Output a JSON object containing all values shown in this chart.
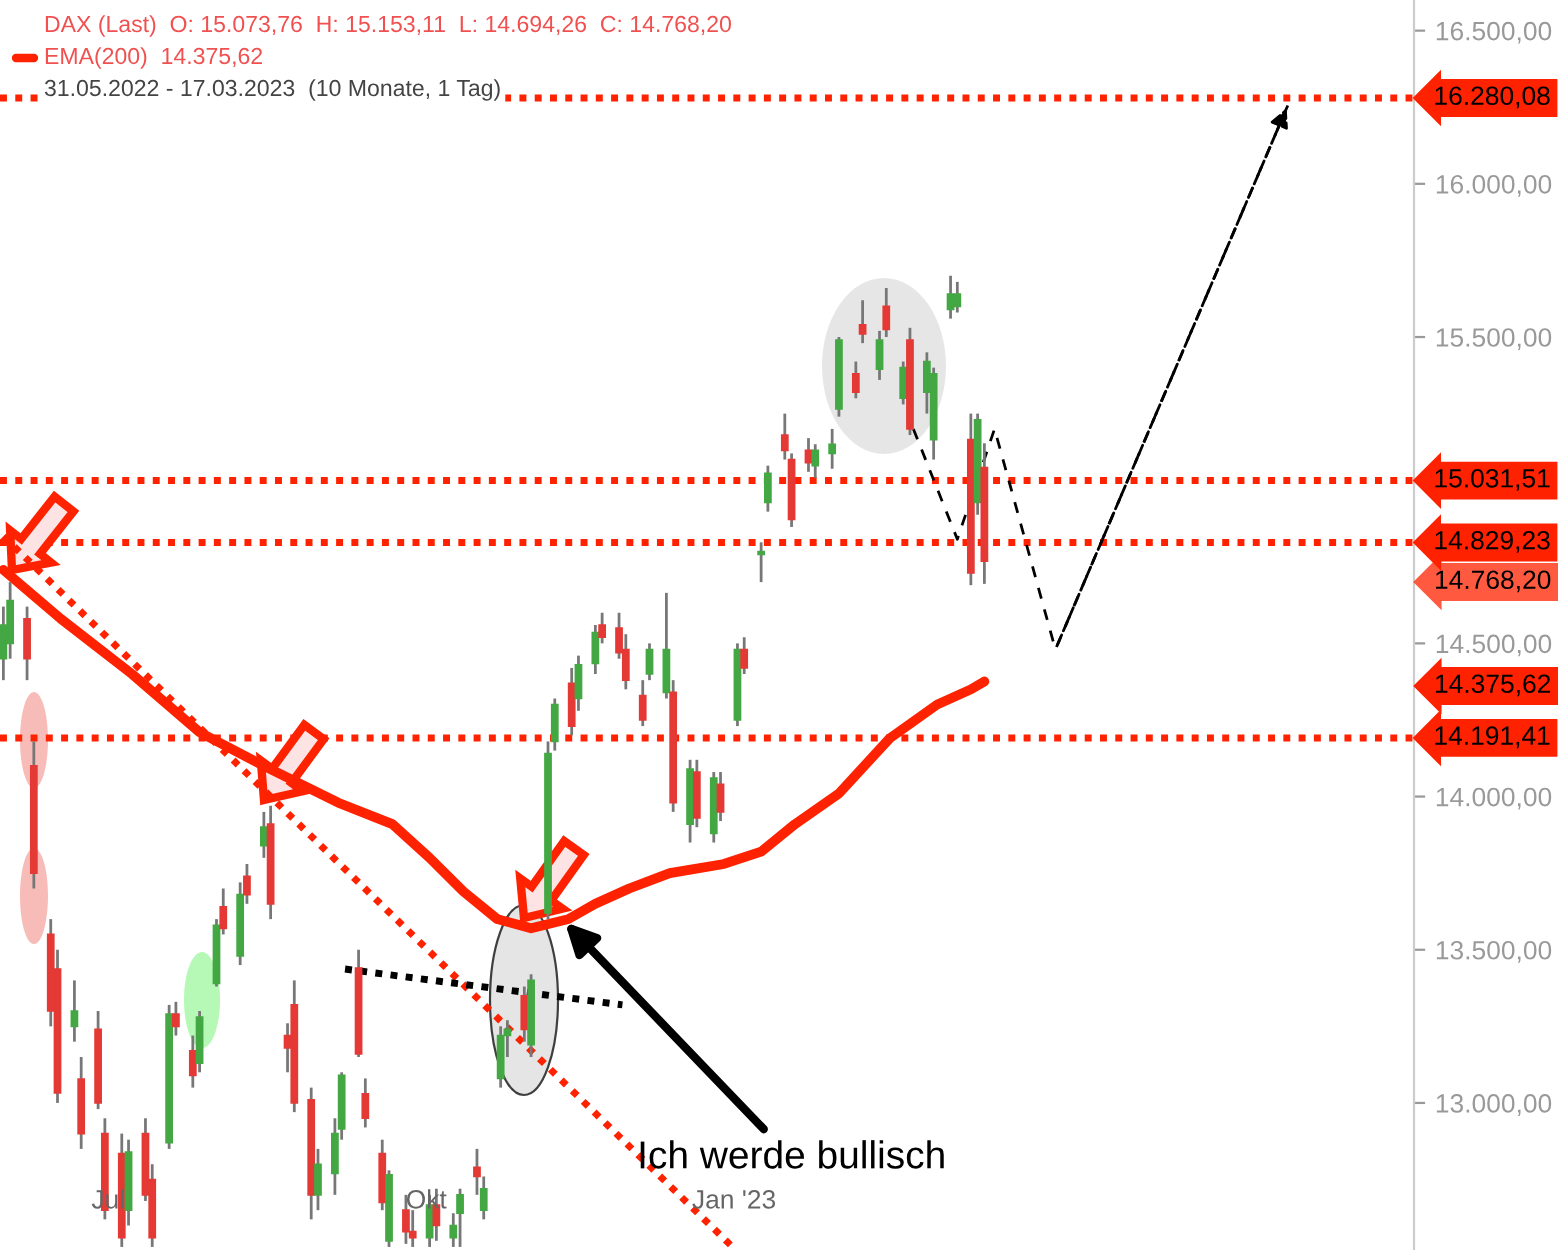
{
  "chart_data": {
    "type": "candlestick",
    "x": [
      "2022-05-31",
      "2022-06-02",
      "2022-06-07",
      "2022-06-09",
      "2022-06-14",
      "2022-06-16",
      "2022-06-21",
      "2022-06-23",
      "2022-06-28",
      "2022-06-30",
      "2022-07-05",
      "2022-07-07",
      "2022-07-12",
      "2022-07-14",
      "2022-07-19",
      "2022-07-21",
      "2022-07-26",
      "2022-07-28",
      "2022-08-02",
      "2022-08-04",
      "2022-08-09",
      "2022-08-11",
      "2022-08-16",
      "2022-08-18",
      "2022-08-23",
      "2022-08-25",
      "2022-08-30",
      "2022-09-01",
      "2022-09-06",
      "2022-09-08",
      "2022-09-13",
      "2022-09-15",
      "2022-09-20",
      "2022-09-22",
      "2022-09-27",
      "2022-09-29",
      "2022-10-04",
      "2022-10-06",
      "2022-10-11",
      "2022-10-13",
      "2022-10-18",
      "2022-10-20",
      "2022-10-25",
      "2022-10-27",
      "2022-11-01",
      "2022-11-03",
      "2022-11-08",
      "2022-11-10",
      "2022-11-15",
      "2022-11-17",
      "2022-11-22",
      "2022-11-24",
      "2022-11-29",
      "2022-12-01",
      "2022-12-06",
      "2022-12-08",
      "2022-12-13",
      "2022-12-15",
      "2022-12-20",
      "2022-12-22",
      "2022-12-27",
      "2022-12-29",
      "2023-01-03",
      "2023-01-05",
      "2023-01-10",
      "2023-01-12",
      "2023-01-17",
      "2023-01-19",
      "2023-01-24",
      "2023-01-26",
      "2023-01-31",
      "2023-02-02",
      "2023-02-07",
      "2023-02-09",
      "2023-02-14",
      "2023-02-16",
      "2023-02-21",
      "2023-02-23",
      "2023-02-28",
      "2023-03-02",
      "2023-03-07",
      "2023-03-09",
      "2023-03-13",
      "2023-03-15",
      "2023-03-17"
    ],
    "ohlc": [
      [
        14450,
        14620,
        14380,
        14560
      ],
      [
        14500,
        14700,
        14450,
        14640
      ],
      [
        14580,
        14620,
        14380,
        14450
      ],
      [
        14100,
        14180,
        13700,
        13750
      ],
      [
        13550,
        13600,
        13250,
        13300
      ],
      [
        13437,
        13500,
        13000,
        13033
      ],
      [
        13250,
        13400,
        13200,
        13300
      ],
      [
        13078,
        13150,
        12850,
        12900
      ],
      [
        13240,
        13300,
        12980,
        13000
      ],
      [
        12900,
        12950,
        12620,
        12650
      ],
      [
        12835,
        12900,
        12530,
        12560
      ],
      [
        12650,
        12880,
        12600,
        12840
      ],
      [
        12900,
        12950,
        12680,
        12700
      ],
      [
        12750,
        12800,
        12530,
        12560
      ],
      [
        12870,
        13320,
        12850,
        13290
      ],
      [
        13290,
        13330,
        13220,
        13250
      ],
      [
        13170,
        13220,
        13050,
        13090
      ],
      [
        13130,
        13300,
        13100,
        13280
      ],
      [
        13390,
        13600,
        13380,
        13580
      ],
      [
        13640,
        13700,
        13550,
        13570
      ],
      [
        13480,
        13720,
        13450,
        13680
      ],
      [
        13740,
        13780,
        13650,
        13680
      ],
      [
        13840,
        13950,
        13800,
        13900
      ],
      [
        13910,
        13970,
        13600,
        13650
      ],
      [
        13220,
        13260,
        13100,
        13180
      ],
      [
        13320,
        13400,
        12970,
        13000
      ],
      [
        13010,
        13050,
        12620,
        12700
      ],
      [
        12700,
        12850,
        12650,
        12800
      ],
      [
        12770,
        12950,
        12700,
        12900
      ],
      [
        12915,
        13100,
        12880,
        13090
      ],
      [
        13440,
        13500,
        13150,
        13160
      ],
      [
        13030,
        13080,
        12920,
        12950
      ],
      [
        12835,
        12880,
        12650,
        12675
      ],
      [
        12550,
        12780,
        12530,
        12765
      ],
      [
        12650,
        12700,
        12540,
        12580
      ],
      [
        12580,
        12650,
        12530,
        12560
      ],
      [
        12560,
        12700,
        12530,
        12667
      ],
      [
        12667,
        12720,
        12550,
        12600
      ],
      [
        12560,
        12640,
        12530,
        12600
      ],
      [
        12640,
        12720,
        12530,
        12700
      ],
      [
        12790,
        12850,
        12700,
        12760
      ],
      [
        12650,
        12760,
        12620,
        12720
      ],
      [
        13080,
        13250,
        13050,
        13220
      ],
      [
        13220,
        13270,
        13150,
        13240
      ],
      [
        13350,
        13380,
        13200,
        13240
      ],
      [
        13190,
        13420,
        13150,
        13400
      ],
      [
        13620,
        14180,
        13600,
        14140
      ],
      [
        14180,
        14320,
        14150,
        14300
      ],
      [
        14370,
        14420,
        14200,
        14230
      ],
      [
        14320,
        14460,
        14280,
        14430
      ],
      [
        14435,
        14560,
        14400,
        14535
      ],
      [
        14560,
        14600,
        14500,
        14520
      ],
      [
        14550,
        14600,
        14450,
        14470
      ],
      [
        14480,
        14530,
        14350,
        14380
      ],
      [
        14330,
        14380,
        14230,
        14250
      ],
      [
        14400,
        14500,
        14380,
        14480
      ],
      [
        14340,
        14665,
        14320,
        14480
      ],
      [
        14340,
        14380,
        13950,
        13980
      ],
      [
        13910,
        14120,
        13850,
        14090
      ],
      [
        14080,
        14120,
        13900,
        13930
      ],
      [
        13880,
        14080,
        13850,
        14060
      ],
      [
        14040,
        14080,
        13920,
        13950
      ],
      [
        14250,
        14500,
        14230,
        14480
      ],
      [
        14480,
        14520,
        14400,
        14420
      ],
      [
        14790,
        14830,
        14700,
        14800
      ],
      [
        14960,
        15080,
        14930,
        15055
      ],
      [
        15180,
        15250,
        15100,
        15130
      ],
      [
        15100,
        15120,
        14880,
        14905
      ],
      [
        15130,
        15170,
        15060,
        15090
      ],
      [
        15080,
        15150,
        15040,
        15130
      ],
      [
        15120,
        15200,
        15070,
        15150
      ],
      [
        15265,
        15500,
        15240,
        15490
      ],
      [
        15380,
        15420,
        15300,
        15320
      ],
      [
        15540,
        15620,
        15480,
        15510
      ],
      [
        15395,
        15520,
        15360,
        15490
      ],
      [
        15600,
        15660,
        15500,
        15525
      ],
      [
        15300,
        15420,
        15280,
        15400
      ],
      [
        15490,
        15530,
        15180,
        15200
      ],
      [
        15320,
        15450,
        15250,
        15420
      ],
      [
        15165,
        15400,
        15100,
        15380
      ],
      [
        15590,
        15700,
        15560,
        15640
      ],
      [
        15600,
        15680,
        15580,
        15640
      ],
      [
        15165,
        15250,
        14690,
        14730
      ],
      [
        14960,
        15250,
        14920,
        15230
      ],
      [
        15073.76,
        15153.11,
        14694.26,
        14768.2
      ]
    ],
    "colors": [
      "#43a843",
      "#43a843",
      "#e53935",
      "#e53935",
      "#e53935",
      "#e53935",
      "#43a843",
      "#e53935",
      "#e53935",
      "#e53935",
      "#e53935",
      "#43a843",
      "#e53935",
      "#e53935",
      "#43a843",
      "#e53935",
      "#e53935",
      "#43a843",
      "#43a843",
      "#e53935",
      "#43a843",
      "#e53935",
      "#43a843",
      "#e53935",
      "#e53935",
      "#e53935",
      "#e53935",
      "#43a843",
      "#43a843",
      "#43a843",
      "#e53935",
      "#e53935",
      "#e53935",
      "#43a843",
      "#e53935",
      "#e53935",
      "#43a843",
      "#e53935",
      "#43a843",
      "#43a843",
      "#e53935",
      "#43a843",
      "#43a843",
      "#43a843",
      "#e53935",
      "#43a843",
      "#43a843",
      "#43a843",
      "#e53935",
      "#43a843",
      "#43a843",
      "#e53935",
      "#e53935",
      "#e53935",
      "#e53935",
      "#43a843",
      "#43a843",
      "#e53935",
      "#43a843",
      "#e53935",
      "#43a843",
      "#e53935",
      "#43a843",
      "#e53935",
      "#43a843",
      "#43a843",
      "#e53935",
      "#e53935",
      "#e53935",
      "#43a843",
      "#43a843",
      "#43a843",
      "#e53935",
      "#e53935",
      "#43a843",
      "#e53935",
      "#43a843",
      "#e53935",
      "#43a843",
      "#43a843",
      "#43a843",
      "#43a843",
      "#e53935",
      "#43a843",
      "#e53935"
    ],
    "series": [
      {
        "type": "line",
        "color": "#ff2200",
        "line_style": "solid",
        "x": [
          "2022-05-31",
          "2022-06-17",
          "2022-07-08",
          "2022-07-28",
          "2022-08-16",
          "2022-09-07",
          "2022-09-23",
          "2022-10-04",
          "2022-10-14",
          "2022-10-24",
          "2022-11-03",
          "2022-11-14",
          "2022-11-22",
          "2022-12-02",
          "2022-12-14",
          "2022-12-30",
          "2023-01-10",
          "2023-01-20",
          "2023-02-02",
          "2023-02-17",
          "2023-03-03",
          "2023-03-13",
          "2023-03-17"
        ],
        "values": [
          14740,
          14580,
          14400,
          14210,
          14100,
          13980,
          13910,
          13800,
          13690,
          13600,
          13570,
          13600,
          13650,
          13700,
          13750,
          13780,
          13820,
          13910,
          14010,
          14190,
          14300,
          14350,
          14375.62
        ]
      },
      {
        "type": "line",
        "color": "#ff2200",
        "line_style": "dotted",
        "x": [
          "2022-05-31",
          "2023-01-02"
        ],
        "values": [
          14850,
          12525
        ]
      },
      {
        "type": "line",
        "color": "#000000",
        "line_style": "dotted",
        "x": [
          "2022-09-09",
          "2022-11-30"
        ],
        "values": [
          13437,
          13320
        ]
      },
      {
        "type": "line",
        "color": "#000000",
        "line_style": "dashed",
        "x": [
          "2023-02-24",
          "2023-03-09",
          "2023-03-20",
          "2023-04-07",
          "2023-06-15"
        ],
        "values": [
          15200,
          14840,
          15200,
          14480,
          16264
        ]
      }
    ],
    "ref_lines": [
      {
        "axis": "y",
        "value": 16280.08,
        "label": "16.280,08",
        "color": "#ff2200",
        "line_style": "dotted"
      },
      {
        "axis": "y",
        "value": 15031.51,
        "label": "15.031,51",
        "color": "#ff2200",
        "line_style": "dotted"
      },
      {
        "axis": "y",
        "value": 14829.23,
        "label": "14.829,23",
        "color": "#ff2200",
        "line_style": "dotted"
      },
      {
        "axis": "y",
        "value": 14191.41,
        "label": "14.191,41",
        "color": "#ff2200",
        "line_style": "dotted"
      }
    ],
    "xlim": [
      "2022-05-30",
      "2023-07-22"
    ],
    "xticks": [
      {
        "value": "2022-07-01",
        "label": "Jul"
      },
      {
        "value": "2022-10-03",
        "label": "Okt"
      },
      {
        "value": "2023-01-02",
        "label": "Jan '23"
      }
    ],
    "ylim": [
      12520,
      16600
    ],
    "yticks": [
      {
        "value": 13000,
        "label": "13.000,00"
      },
      {
        "value": 13500,
        "label": "13.500,00"
      },
      {
        "value": 14000,
        "label": "14.000,00"
      },
      {
        "value": 14500,
        "label": "14.500,00"
      },
      {
        "value": 15500,
        "label": "15.500,00"
      },
      {
        "value": 16000,
        "label": "16.000,00"
      },
      {
        "value": 16500,
        "label": "16.500,00"
      }
    ],
    "annotations": [
      "DAX (Last)  O: 15.073,76  H: 15.153,11  L: 14.694,26  C: 14.768,20",
      "EMA(200)  14.375,62",
      "31.05.2022 - 17.03.2023  (10 Monate, 1 Tag)",
      {
        "text": "Ich werde bullisch",
        "x": "2022-11-13",
        "y": 13590
      },
      "14.768,20",
      "14.375,62"
    ],
    "legend": false,
    "grid": false
  }
}
